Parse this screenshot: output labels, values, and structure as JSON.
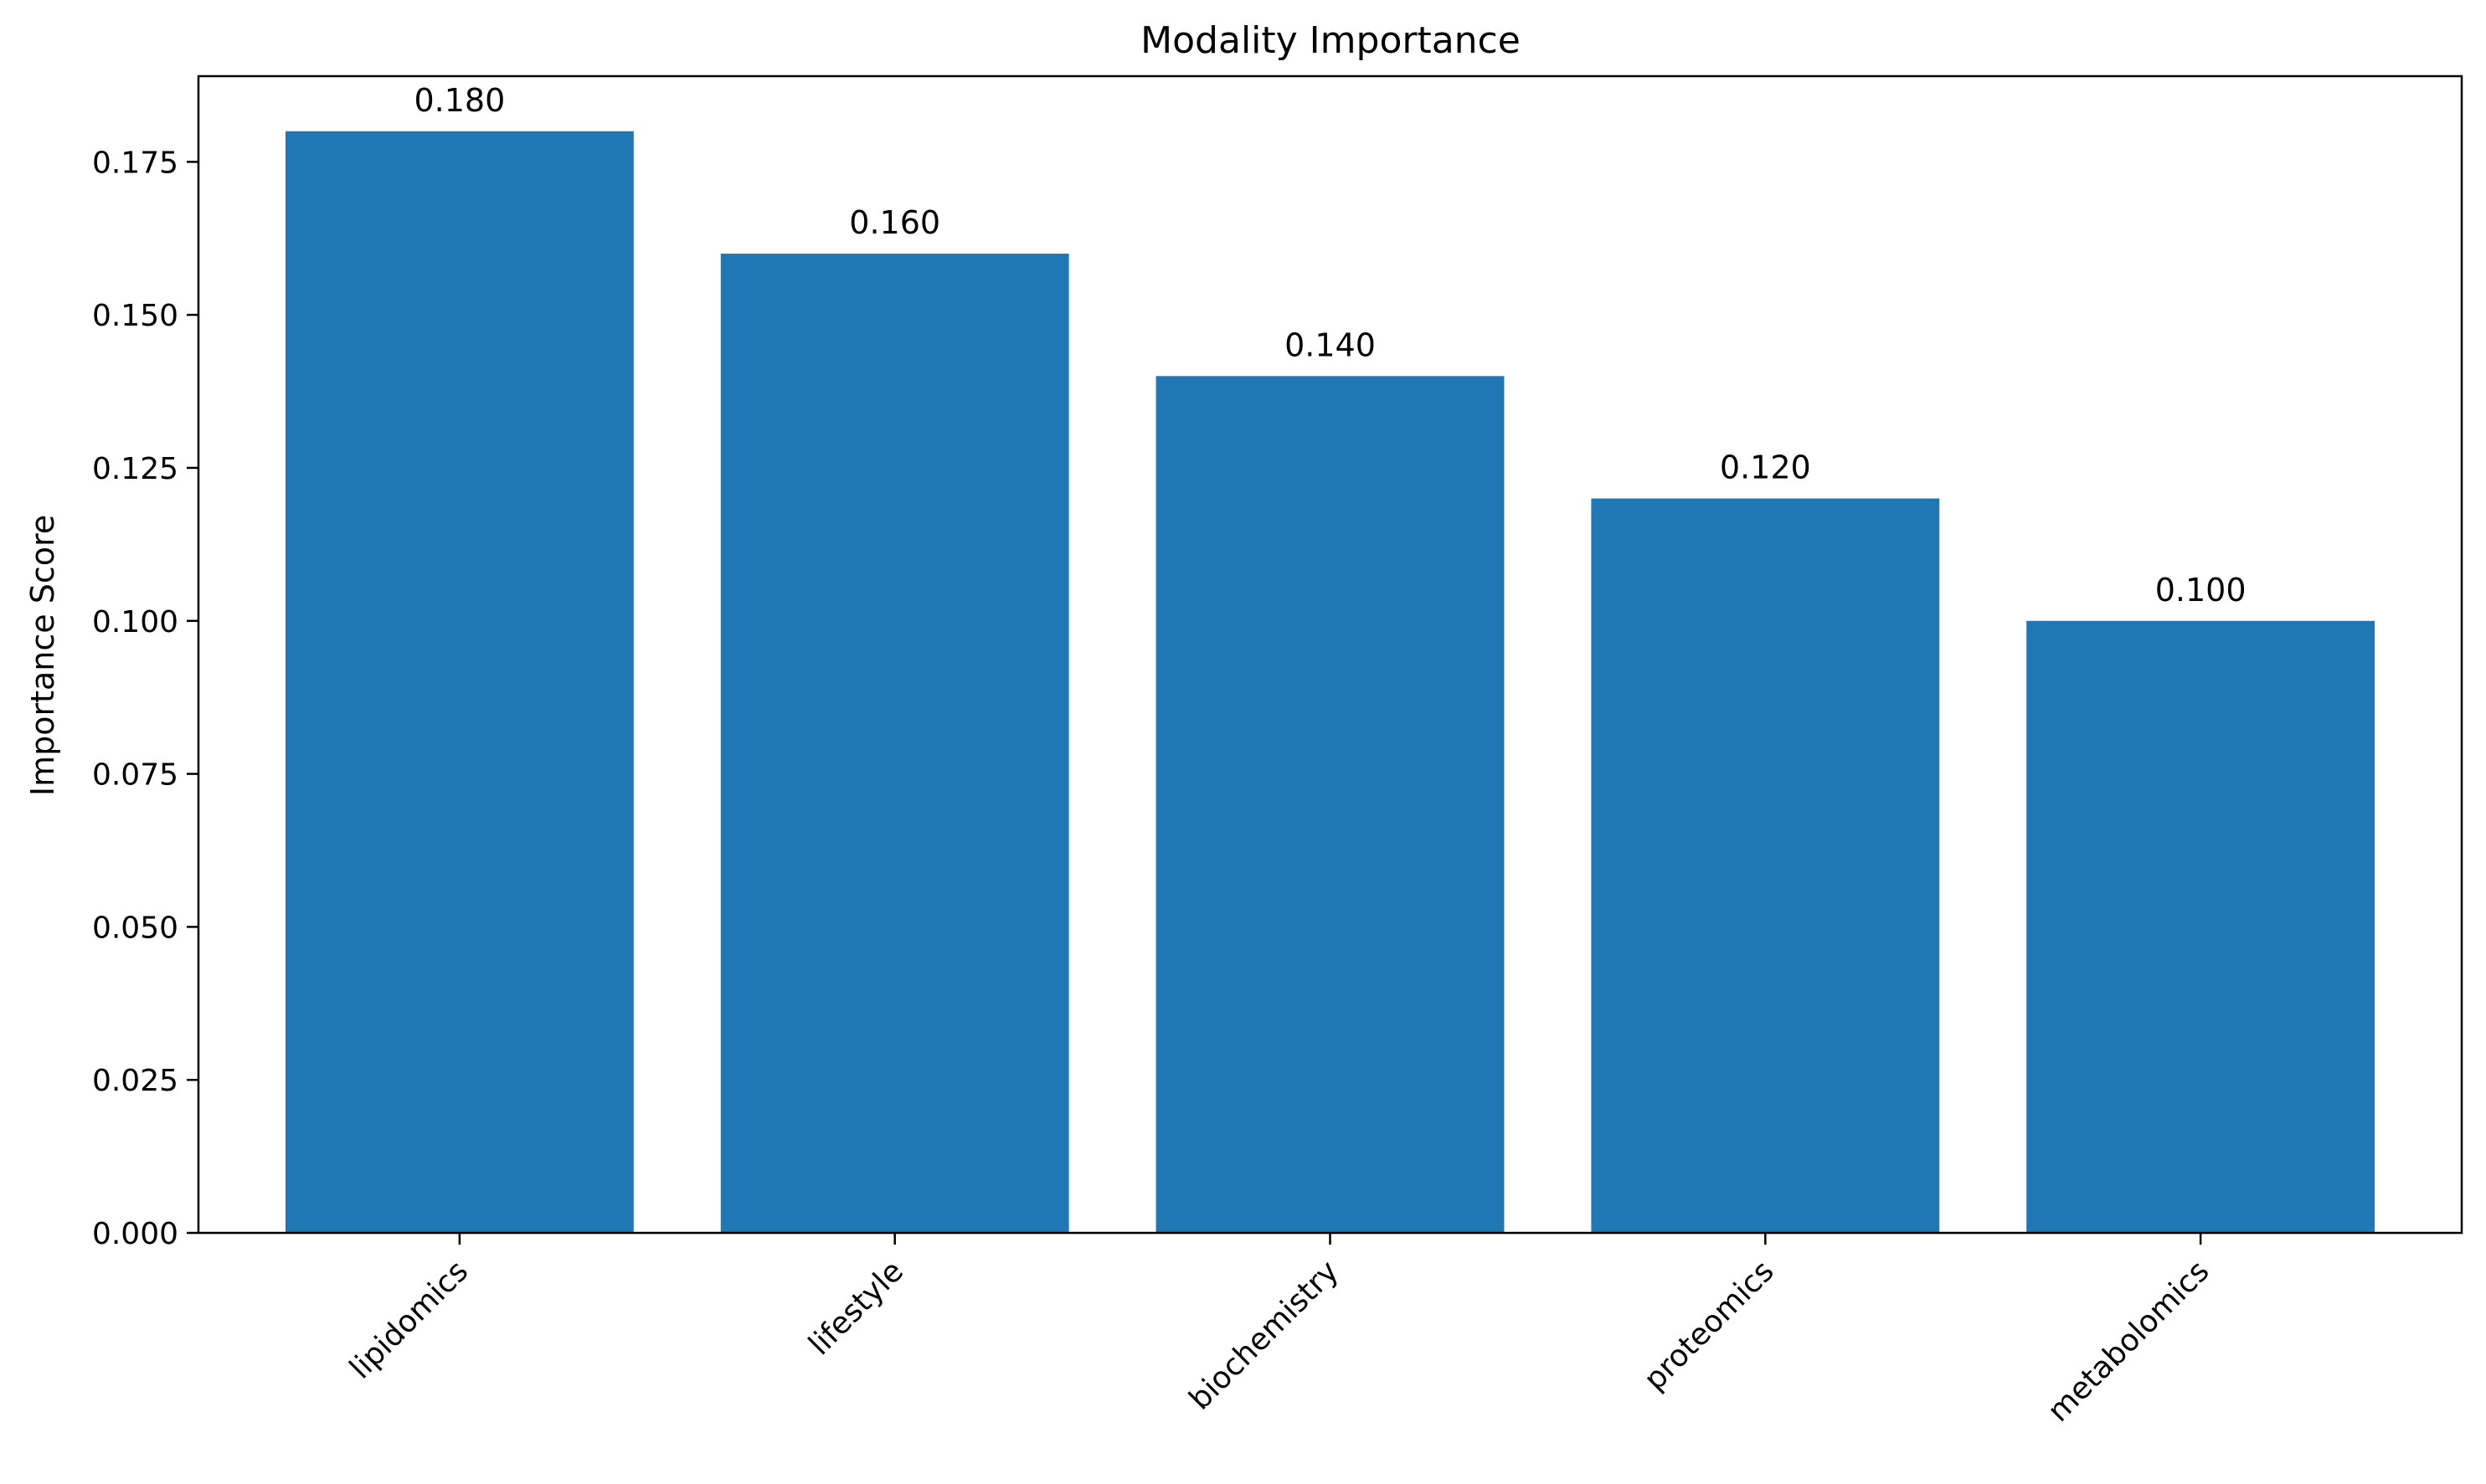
{
  "chart_data": {
    "type": "bar",
    "title": "Modality Importance",
    "xlabel": "",
    "ylabel": "Importance Score",
    "categories": [
      "lipidomics",
      "lifestyle",
      "biochemistry",
      "proteomics",
      "metabolomics"
    ],
    "values": [
      0.18,
      0.16,
      0.14,
      0.12,
      0.1
    ],
    "data_labels": [
      "0.180",
      "0.160",
      "0.140",
      "0.120",
      "0.100"
    ],
    "ylim": [
      0,
      0.189
    ],
    "yticks": [
      0.0,
      0.025,
      0.05,
      0.075,
      0.1,
      0.125,
      0.15,
      0.175
    ],
    "ytick_labels": [
      "0.000",
      "0.025",
      "0.050",
      "0.075",
      "0.100",
      "0.125",
      "0.150",
      "0.175"
    ],
    "xtick_rotation_deg": 45,
    "grid": false,
    "legend": "none",
    "bar_color": "#1f77b4"
  }
}
